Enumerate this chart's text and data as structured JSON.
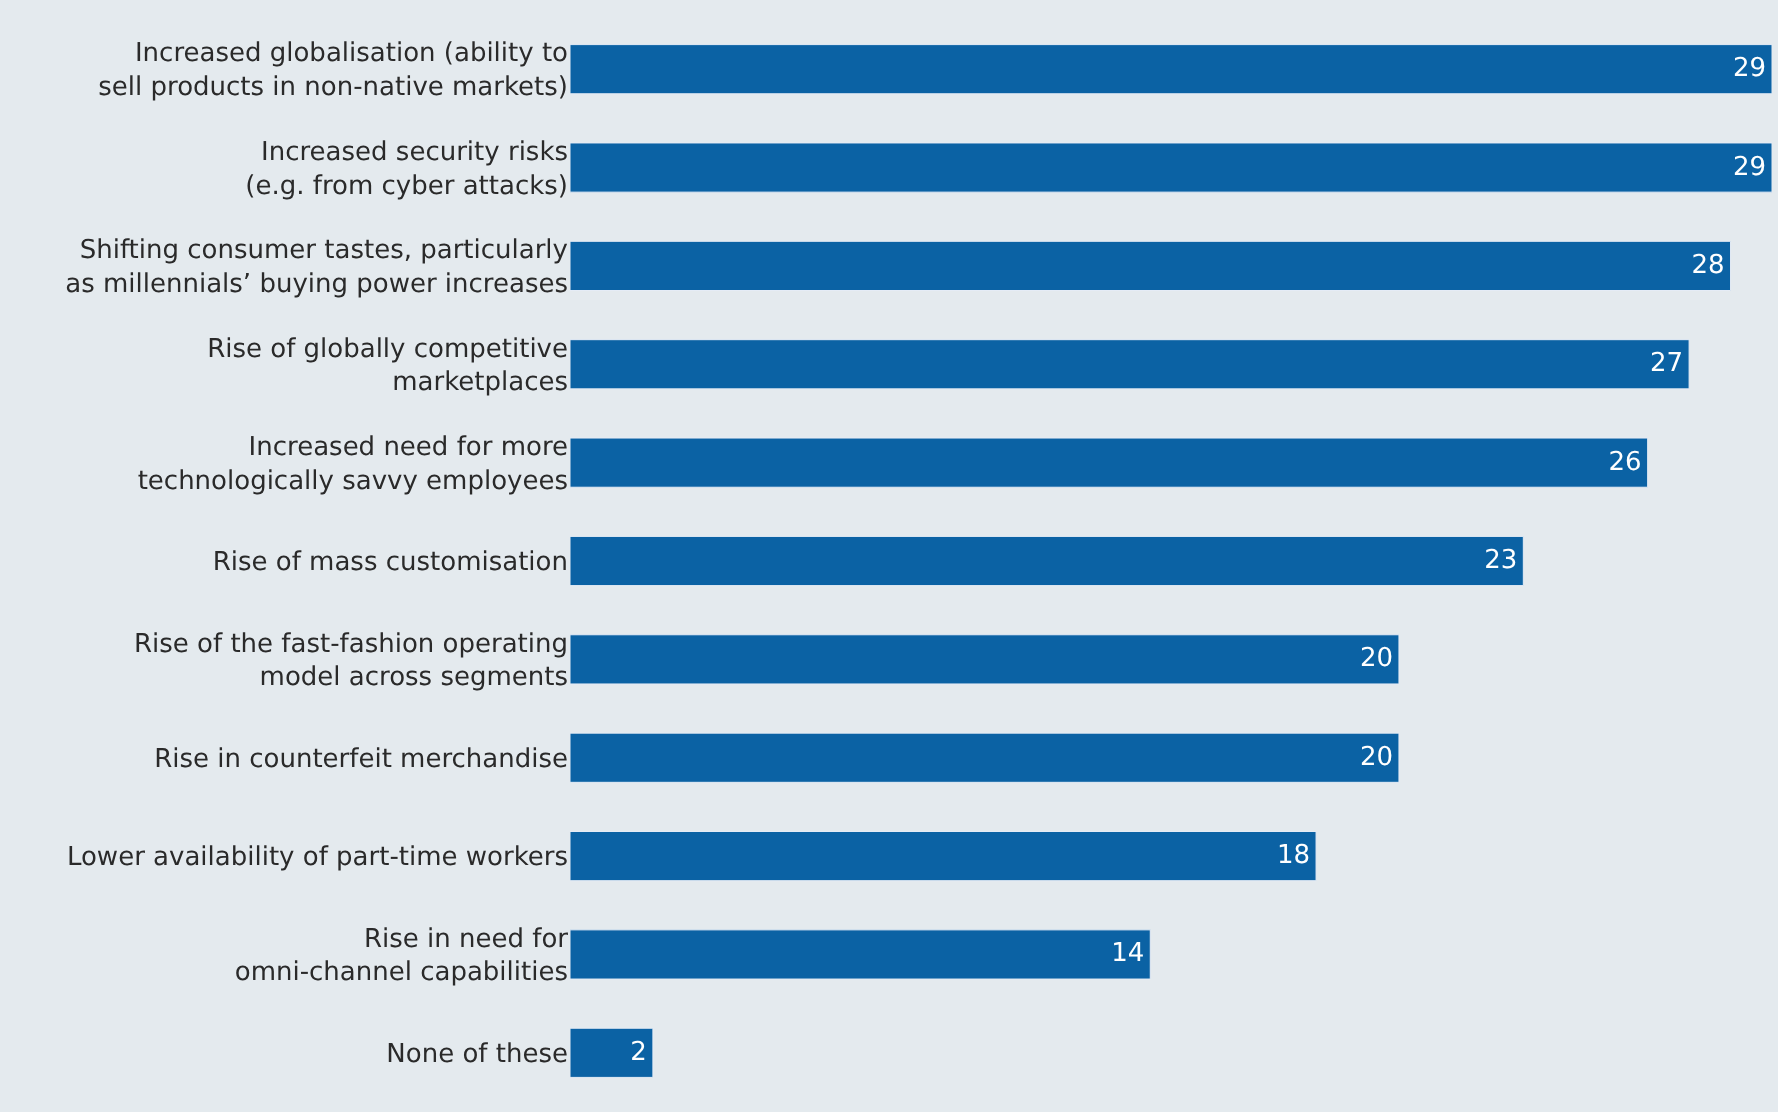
{
  "chart_data": {
    "type": "bar",
    "orientation": "horizontal",
    "data_labels": true,
    "grid": false,
    "legend": false,
    "tick_labels": "y",
    "categories": [
      "Increased globalisation (ability to\nsell products in non-native markets)",
      "Increased security risks\n(e.g. from cyber attacks)",
      "Shifting consumer tastes, particularly\nas millennials’ buying power increases",
      "Rise of globally competitive\nmarketplaces",
      "Increased need for more\ntechnologically savvy employees",
      "Rise of mass customisation",
      "Rise of the fast-fashion operating\nmodel across segments",
      "Rise in counterfeit merchandise",
      "Lower availability of part-time workers",
      "Rise in need for\nomni-channel capabilities",
      "None of these"
    ],
    "values": [
      29,
      29,
      28,
      27,
      26,
      23,
      20,
      20,
      18,
      14,
      2
    ],
    "color": "#0b62a4"
  }
}
